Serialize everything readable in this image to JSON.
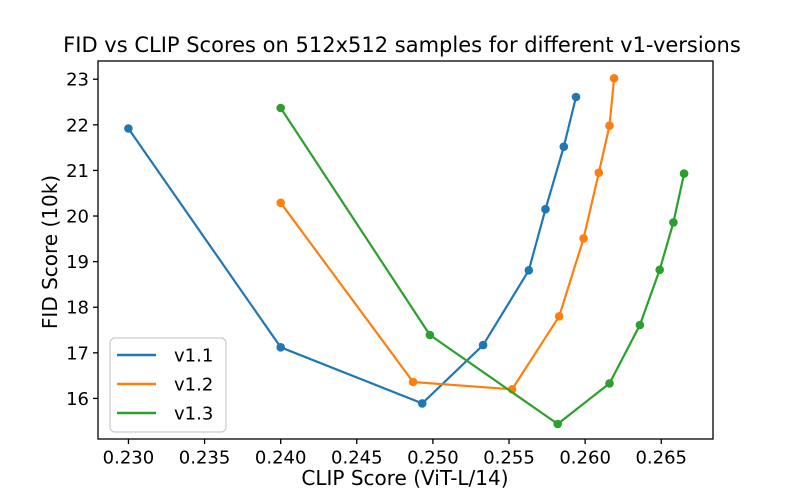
{
  "figure": {
    "background": "#ffffff",
    "frame_color": "#000000"
  },
  "chart_data": {
    "type": "line",
    "title": "FID vs CLIP Scores on 512x512 samples for different v1-versions",
    "xlabel": "CLIP Score (ViT-L/14)",
    "ylabel": "FID Score (10k)",
    "xlim": [
      0.228,
      0.2684
    ],
    "ylim": [
      15.11,
      23.4
    ],
    "xticks": [
      0.23,
      0.235,
      0.24,
      0.245,
      0.25,
      0.255,
      0.26,
      0.265
    ],
    "xtick_decimals": 3,
    "yticks": [
      16,
      17,
      18,
      19,
      20,
      21,
      22,
      23
    ],
    "grid": false,
    "legend_position": "lower-left",
    "marker": "o",
    "series": [
      {
        "name": "v1.1",
        "color": "#1f77b4",
        "points": [
          [
            0.23,
            21.92
          ],
          [
            0.24,
            17.12
          ],
          [
            0.2493,
            15.89
          ],
          [
            0.2533,
            17.17
          ],
          [
            0.2563,
            18.81
          ],
          [
            0.2574,
            20.15
          ],
          [
            0.2586,
            21.52
          ],
          [
            0.2594,
            22.61
          ]
        ]
      },
      {
        "name": "v1.2",
        "color": "#ff7f0e",
        "points": [
          [
            0.24,
            20.29
          ],
          [
            0.2487,
            16.36
          ],
          [
            0.2552,
            16.2
          ],
          [
            0.2583,
            17.8
          ],
          [
            0.2599,
            19.51
          ],
          [
            0.2609,
            20.95
          ],
          [
            0.2616,
            21.98
          ],
          [
            0.2619,
            23.02
          ]
        ]
      },
      {
        "name": "v1.3",
        "color": "#2ca02c",
        "points": [
          [
            0.24,
            22.37
          ],
          [
            0.2498,
            17.39
          ],
          [
            0.2582,
            15.44
          ],
          [
            0.2616,
            16.33
          ],
          [
            0.2636,
            17.61
          ],
          [
            0.2649,
            18.82
          ],
          [
            0.2658,
            19.86
          ],
          [
            0.2665,
            20.93
          ]
        ]
      }
    ]
  }
}
